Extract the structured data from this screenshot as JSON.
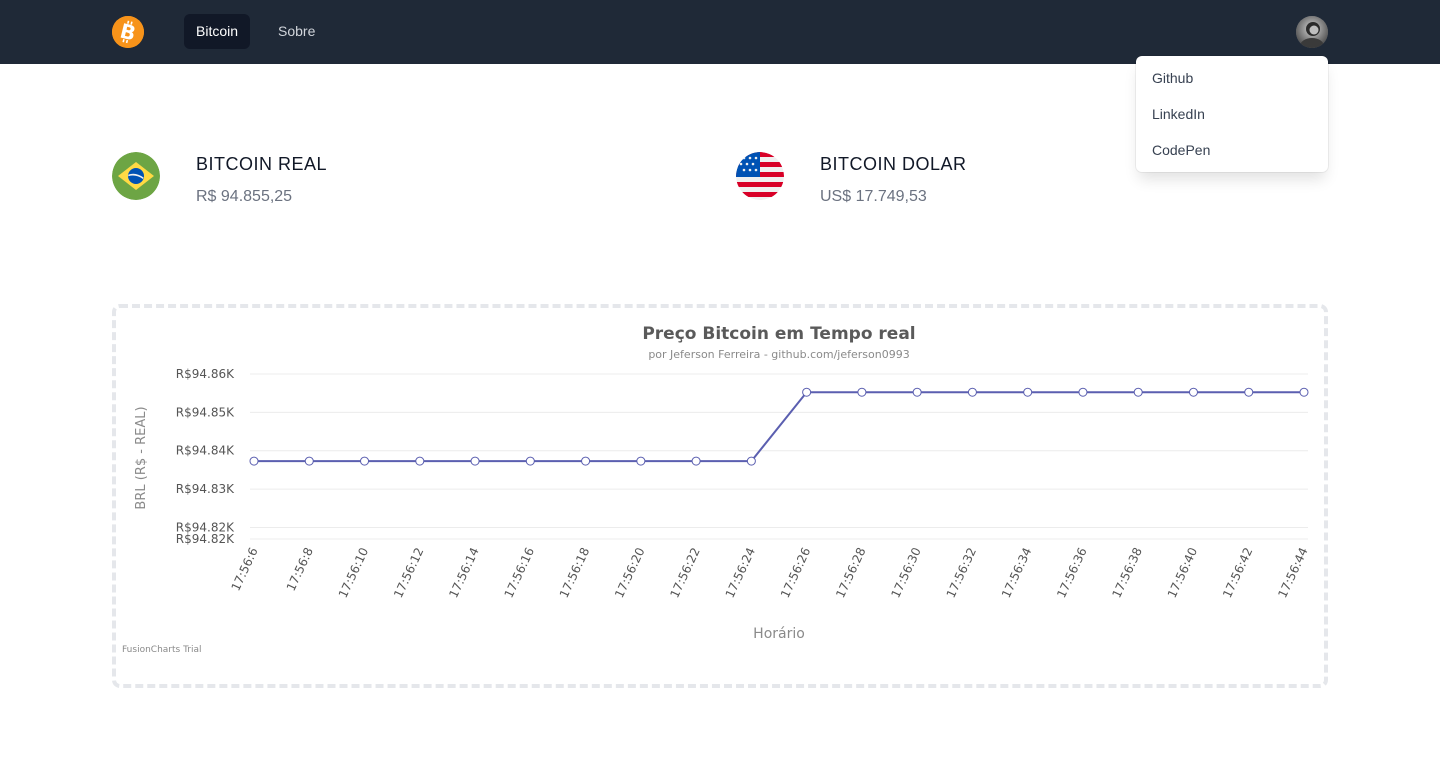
{
  "navbar": {
    "logo_icon": "bitcoin-icon",
    "links": [
      {
        "label": "Bitcoin",
        "active": true
      },
      {
        "label": "Sobre",
        "active": false
      }
    ],
    "avatar_icon": "user-avatar"
  },
  "dropdown": {
    "items": [
      "Github",
      "LinkedIn",
      "CodePen"
    ]
  },
  "cards": {
    "real": {
      "title": "BITCOIN REAL",
      "value": "R$ 94.855,25",
      "flag_icon": "brazil-flag-icon"
    },
    "dolar": {
      "title": "BITCOIN DOLAR",
      "value": "US$ 17.749,53",
      "flag_icon": "usa-flag-icon"
    }
  },
  "colors": {
    "navbar": "#1f2937",
    "accent": "#f7931a",
    "line": "#5b5fb0"
  },
  "chart_data": {
    "type": "line",
    "title": "Preço Bitcoin em Tempo real",
    "subtitle": "por Jeferson Ferreira - github.com/jeferson0993",
    "xlabel": "Horário",
    "ylabel": "BRL (R$ - REAL)",
    "watermark": "FusionCharts Trial",
    "categories": [
      "17:56:6",
      "17:56:8",
      "17:56:10",
      "17:56:12",
      "17:56:14",
      "17:56:16",
      "17:56:18",
      "17:56:20",
      "17:56:22",
      "17:56:24",
      "17:56:26",
      "17:56:28",
      "17:56:30",
      "17:56:32",
      "17:56:34",
      "17:56:36",
      "17:56:38",
      "17:56:40",
      "17:56:42",
      "17:56:44"
    ],
    "values": [
      94837.3,
      94837.3,
      94837.3,
      94837.3,
      94837.3,
      94837.3,
      94837.3,
      94837.3,
      94837.3,
      94837.3,
      94855.25,
      94855.25,
      94855.25,
      94855.25,
      94855.25,
      94855.25,
      94855.25,
      94855.25,
      94855.25,
      94855.25
    ],
    "yticks": [
      {
        "value": 94860,
        "label": "R$94.86K"
      },
      {
        "value": 94850,
        "label": "R$94.85K"
      },
      {
        "value": 94840,
        "label": "R$94.84K"
      },
      {
        "value": 94830,
        "label": "R$94.83K"
      },
      {
        "value": 94820,
        "label": "R$94.82K"
      },
      {
        "value": 94817,
        "label": "R$94.82K"
      }
    ],
    "ylim": [
      94817,
      94860
    ],
    "grid": true,
    "legend": "none"
  }
}
